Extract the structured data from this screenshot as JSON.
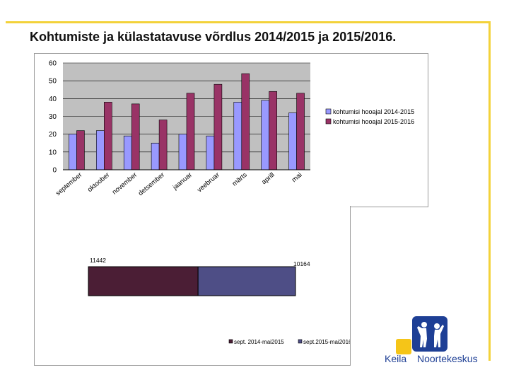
{
  "title": "Kohtumiste ja külastatavuse võrdlus 2014/2015 ja 2015/2016.",
  "chart_data": [
    {
      "type": "bar",
      "categories": [
        "september",
        "oktoober",
        "november",
        "detsember",
        "jaanuar",
        "veebruar",
        "märts",
        "aprill",
        "mai"
      ],
      "series": [
        {
          "name": "kohtumisi hooajal 2014-2015",
          "color": "#9999ff",
          "values": [
            20,
            22,
            19,
            15,
            20,
            19,
            38,
            39,
            32
          ]
        },
        {
          "name": "kohtumisi hooajal 2015-2016",
          "color": "#993366",
          "values": [
            22,
            38,
            37,
            28,
            43,
            48,
            54,
            44,
            43
          ]
        }
      ],
      "yticks": [
        0,
        10,
        20,
        30,
        40,
        50,
        60
      ],
      "ylim": [
        0,
        60
      ],
      "plot_background": "#c0c0c0",
      "grid": true,
      "legend": "right"
    },
    {
      "type": "bar",
      "orientation": "horizontal-stacked",
      "series": [
        {
          "name": "sept. 2014-mai2015",
          "color": "#4b1e35",
          "value": 11442
        },
        {
          "name": "sept.2015-mai2016",
          "color": "#4e4e86",
          "value": 10164
        }
      ],
      "data_labels": [
        "11442",
        "10164"
      ],
      "legend": "bottom"
    }
  ],
  "logo": {
    "word1": "Keila",
    "word2": "Noortekeskus",
    "blue": "#1e3f95",
    "yellow": "#f5c518"
  }
}
